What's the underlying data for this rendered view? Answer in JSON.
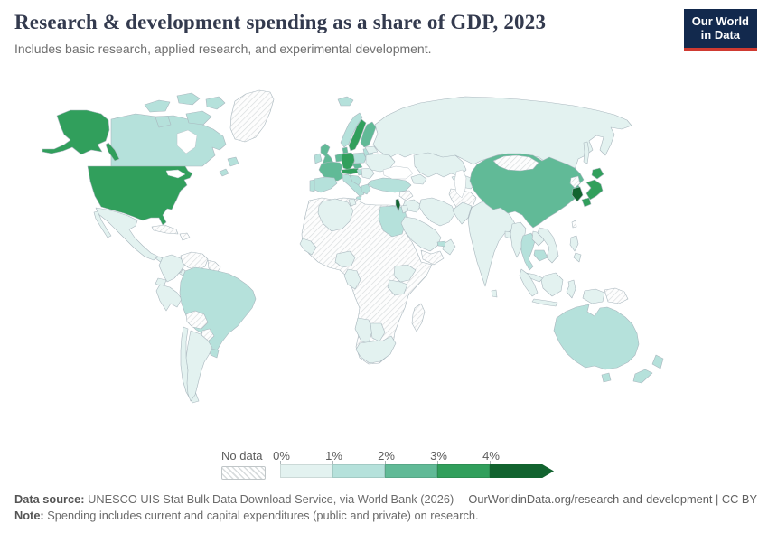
{
  "header": {
    "title": "Research & development spending as a share of GDP, 2023",
    "subtitle": "Includes basic research, applied research, and experimental development."
  },
  "logo": {
    "line1": "Our World",
    "line2": "in Data"
  },
  "legend": {
    "no_data_label": "No data",
    "bins": [
      {
        "label": "0%",
        "band": "0-1%",
        "color": "#e3f2f0"
      },
      {
        "label": "1%",
        "band": "1-2%",
        "color": "#b5e1db"
      },
      {
        "label": "2%",
        "band": "2-3%",
        "color": "#61ba97"
      },
      {
        "label": "3%",
        "band": "3-4%",
        "color": "#319f5c"
      },
      {
        "label": "4%",
        "band": "4%+",
        "color": "#12632f",
        "arrow": true
      }
    ]
  },
  "footer": {
    "source_label": "Data source:",
    "source_text": " UNESCO UIS Stat Bulk Data Download Service, via World Bank (2026)",
    "link": "OurWorldinData.org/research-and-development | CC BY",
    "note_label": "Note:",
    "note_text": " Spending includes current and capital expenditures (public and private) on research."
  },
  "chart_data": {
    "type": "heatmap",
    "subtype": "world-choropleth",
    "title": "Research & development spending as a share of GDP, 2023",
    "unit": "% of GDP",
    "bands": [
      "0-1%",
      "1-2%",
      "2-3%",
      "3-4%",
      "4%+",
      "no-data"
    ],
    "palette": {
      "0-1%": "#e3f2f0",
      "1-2%": "#b5e1db",
      "2-3%": "#61ba97",
      "3-4%": "#319f5c",
      "4%+": "#12632f",
      "no-data": "hatch"
    },
    "regions": {
      "greenland": "no-data",
      "canada": "1-2%",
      "united-states": "3-4%",
      "mexico": "0-1%",
      "central-america": "0-1%",
      "nicaragua": "no-data",
      "cuba": "no-data",
      "hispaniola": "no-data",
      "colombia": "0-1%",
      "venezuela": "no-data",
      "guyanas": "no-data",
      "ecuador": "0-1%",
      "peru": "0-1%",
      "brazil": "1-2%",
      "bolivia": "no-data",
      "paraguay": "no-data",
      "chile": "0-1%",
      "argentina": "0-1%",
      "uruguay": "1-2%",
      "iceland": "1-2%",
      "norway": "1-2%",
      "sweden": "3-4%",
      "finland": "2-3%",
      "denmark": "2-3%",
      "baltics": "1-2%",
      "united-kingdom": "2-3%",
      "ireland": "1-2%",
      "netherlands-belgium": "2-3%",
      "germany": "3-4%",
      "france": "2-3%",
      "switzerland-austria": "3-4%",
      "czechia": "2-3%",
      "poland": "1-2%",
      "slovakia-hungary": "1-2%",
      "italy": "1-2%",
      "balkans": "1-2%",
      "greece": "1-2%",
      "romania-bulgaria": "0-1%",
      "ukraine": "0-1%",
      "belarus": "0-1%",
      "spain": "1-2%",
      "portugal": "1-2%",
      "russia": "0-1%",
      "kazakhstan": "0-1%",
      "central-asia": "0-1%",
      "turkmenistan-afghanistan": "no-data",
      "caucasus": "0-1%",
      "turkey": "1-2%",
      "syria": "no-data",
      "iraq": "0-1%",
      "iran": "0-1%",
      "israel": "4%+",
      "jordan": "0-1%",
      "saudi-arabia": "0-1%",
      "yemen": "no-data",
      "oman": "0-1%",
      "united-arab-emirates": "1-2%",
      "africa-interior": "no-data",
      "algeria": "0-1%",
      "tunisia": "0-1%",
      "egypt": "1-2%",
      "senegal-guinea": "0-1%",
      "nigeria": "0-1%",
      "cameroon-gabon": "0-1%",
      "ethiopia": "0-1%",
      "kenya-uganda": "0-1%",
      "namibia": "0-1%",
      "botswana": "0-1%",
      "south-africa": "0-1%",
      "madagascar": "no-data",
      "pakistan": "0-1%",
      "india": "0-1%",
      "bangladesh": "0-1%",
      "sri-lanka": "0-1%",
      "myanmar": "0-1%",
      "thailand": "1-2%",
      "laos": "0-1%",
      "cambodia": "1-2%",
      "vietnam": "0-1%",
      "malaysia": "0-1%",
      "indonesia": "0-1%",
      "papua-new-guinea": "no-data",
      "philippines": "0-1%",
      "china": "2-3%",
      "mongolia": "no-data",
      "north-korea": "no-data",
      "south-korea": "4%+",
      "japan": "3-4%",
      "taiwan": "no-data",
      "australia": "1-2%",
      "new-zealand": "1-2%"
    }
  }
}
